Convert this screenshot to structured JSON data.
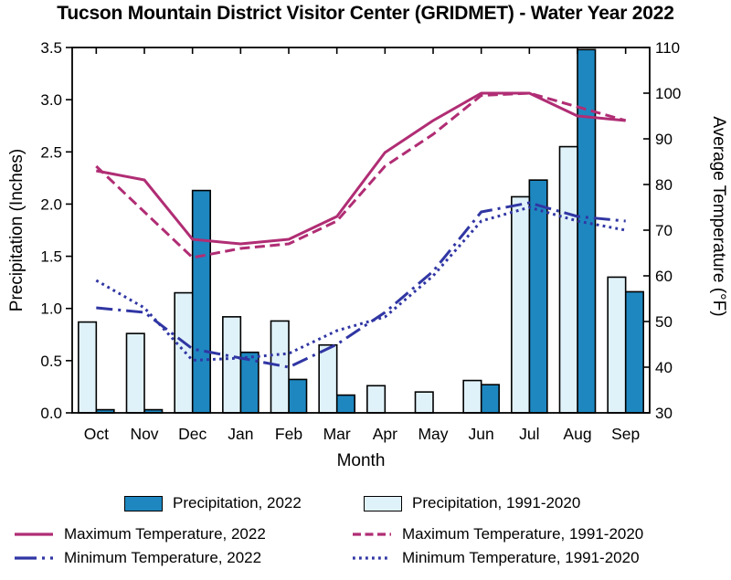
{
  "title": "Tucson Mountain District Visitor Center (GRIDMET) - Water Year 2022",
  "axes": {
    "left_label": "Precipitation (Inches)",
    "right_label": "Average Temperature (°F)",
    "x_label": "Month",
    "left_ticks": [
      "0.0",
      "0.5",
      "1.0",
      "1.5",
      "2.0",
      "2.5",
      "3.0",
      "3.5"
    ],
    "right_ticks": [
      "30",
      "40",
      "50",
      "60",
      "70",
      "80",
      "90",
      "100",
      "110"
    ]
  },
  "colors": {
    "precip_2022": "#1E87C0",
    "precip_normals": "#E0F2F9",
    "max_temp": "#B02D74",
    "min_temp": "#3036A3",
    "axis": "#000000"
  },
  "legend": {
    "precip_2022": "Precipitation, 2022",
    "precip_normals": "Precipitation, 1991-2020",
    "max_2022": "Maximum Temperature, 2022",
    "max_normals": "Maximum Temperature, 1991-2020",
    "min_2022": "Minimum Temperature, 2022",
    "min_normals": "Minimum Temperature, 1991-2020"
  },
  "chart_data": {
    "type": "combo bar+line",
    "categories": [
      "Oct",
      "Nov",
      "Dec",
      "Jan",
      "Feb",
      "Mar",
      "Apr",
      "May",
      "Jun",
      "Jul",
      "Aug",
      "Sep"
    ],
    "left_axis": {
      "label": "Precipitation (Inches)",
      "range": [
        0,
        3.5
      ],
      "tick_step": 0.5,
      "units": "inches"
    },
    "right_axis": {
      "label": "Average Temperature (°F)",
      "range": [
        30,
        110
      ],
      "tick_step": 10,
      "units": "°F"
    },
    "grid": false,
    "legend_position": "bottom",
    "series": [
      {
        "key": "precip_2022",
        "name": "Precipitation, 2022",
        "type": "bar",
        "axis": "left",
        "bar_slot": 1,
        "color_key": "precip_2022",
        "values": [
          0.03,
          0.03,
          2.13,
          0.58,
          0.32,
          0.17,
          0,
          0,
          0.27,
          2.23,
          3.48,
          1.16
        ]
      },
      {
        "key": "precip_normals",
        "name": "Precipitation, 1991-2020",
        "type": "bar",
        "axis": "left",
        "bar_slot": 0,
        "color_key": "precip_normals",
        "values": [
          0.87,
          0.76,
          1.15,
          0.92,
          0.88,
          0.65,
          0.26,
          0.2,
          0.31,
          2.07,
          2.55,
          1.3
        ]
      },
      {
        "key": "max_temp_2022",
        "name": "Maximum Temperature, 2022",
        "type": "line",
        "axis": "right",
        "line_style": "solid",
        "color_key": "max_temp",
        "values": [
          83,
          81,
          68,
          67,
          68,
          73,
          87,
          94,
          100,
          100,
          95,
          94
        ]
      },
      {
        "key": "max_temp_normals",
        "name": "Maximum Temperature, 1991-2020",
        "type": "line",
        "axis": "right",
        "line_style": "dashed",
        "color_key": "max_temp",
        "values": [
          84,
          74,
          64,
          66,
          67,
          72,
          84,
          91,
          99.5,
          100,
          97,
          94
        ]
      },
      {
        "key": "min_temp_2022",
        "name": "Minimum Temperature, 2022",
        "type": "line",
        "axis": "right",
        "line_style": "dashdot",
        "color_key": "min_temp",
        "values": [
          53,
          52,
          44,
          42,
          40,
          45,
          52,
          61,
          74,
          76,
          73,
          72
        ]
      },
      {
        "key": "min_temp_normals",
        "name": "Minimum Temperature, 1991-2020",
        "type": "line",
        "axis": "right",
        "line_style": "dotted",
        "color_key": "min_temp",
        "values": [
          59,
          53,
          41.5,
          42,
          43,
          48,
          51,
          60,
          72,
          75,
          72,
          70
        ]
      }
    ]
  }
}
